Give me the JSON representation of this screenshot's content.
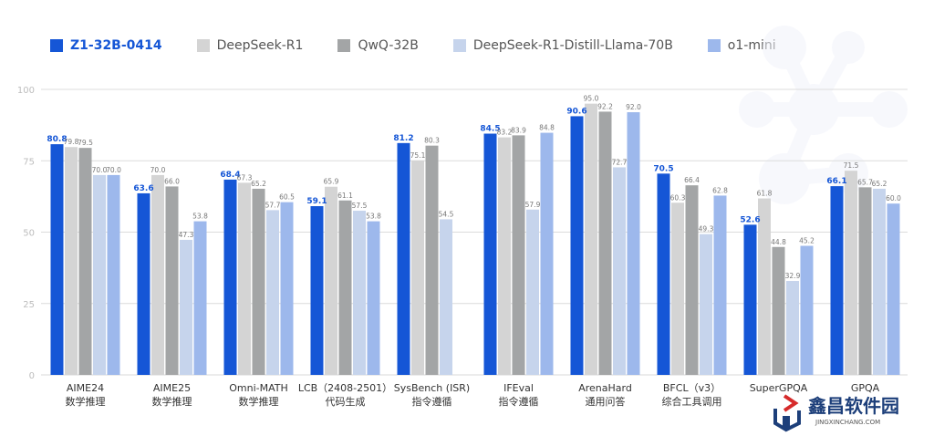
{
  "chart_data": {
    "type": "bar",
    "title": "",
    "xlabel": "",
    "ylabel": "",
    "ylim": [
      0,
      100
    ],
    "yticks": [
      "0",
      "25",
      "50",
      "75",
      "100"
    ],
    "grid": true,
    "legend_position": "top-left",
    "categories": [
      {
        "line1": "AIME24",
        "line2": "数学推理"
      },
      {
        "line1": "AIME25",
        "line2": "数学推理"
      },
      {
        "line1": "Omni-MATH",
        "line2": "数学推理"
      },
      {
        "line1": "LCB（2408-2501）",
        "line2": "代码生成"
      },
      {
        "line1": "SysBench (ISR)",
        "line2": "指令遵循"
      },
      {
        "line1": "IFEval",
        "line2": "指令遵循"
      },
      {
        "line1": "ArenaHard",
        "line2": "通用问答"
      },
      {
        "line1": "BFCL（v3）",
        "line2": "综合工具调用"
      },
      {
        "line1": "SuperGPQA",
        "line2": ""
      },
      {
        "line1": "GPQA",
        "line2": ""
      }
    ],
    "series": [
      {
        "name": "Z1-32B-0414",
        "color": "#1556d6",
        "label_color": "#1556d6",
        "values": [
          80.8,
          63.6,
          68.4,
          59.1,
          81.2,
          84.5,
          90.6,
          70.5,
          52.6,
          66.1
        ],
        "labels": [
          "80.8",
          "63.6",
          "68.4",
          "59.1",
          "81.2",
          "84.5",
          "90.6",
          "70.5",
          "52.6",
          "66.1"
        ]
      },
      {
        "name": "DeepSeek-R1",
        "color": "#d4d4d4",
        "label_color": "#777777",
        "values": [
          79.8,
          70.0,
          67.3,
          65.9,
          75.1,
          83.2,
          95.0,
          60.3,
          61.8,
          71.5
        ],
        "labels": [
          "79.8",
          "70.0",
          "67.3",
          "65.9",
          "75.1",
          "83.2",
          "95.0",
          "60.3",
          "61.8",
          "71.5"
        ]
      },
      {
        "name": "QwQ-32B",
        "color": "#a3a5a6",
        "label_color": "#777777",
        "values": [
          79.5,
          66.0,
          65.2,
          61.1,
          80.3,
          83.9,
          92.2,
          66.4,
          44.8,
          65.7
        ],
        "labels": [
          "79.5",
          "66.0",
          "65.2",
          "61.1",
          "80.3",
          "83.9",
          "92.2",
          "66.4",
          "44.8",
          "65.7"
        ]
      },
      {
        "name": "DeepSeek-R1-Distill-Llama-70B",
        "color": "#c6d4ec",
        "label_color": "#777777",
        "values": [
          70.0,
          47.3,
          57.7,
          57.5,
          54.5,
          57.9,
          72.7,
          49.3,
          32.9,
          65.2
        ],
        "labels": [
          "70.0",
          "47.3",
          "57.7",
          "57.5",
          "54.5",
          "57.9",
          "72.7",
          "49.3",
          "32.9",
          "65.2"
        ]
      },
      {
        "name": "o1-mini",
        "color": "#9db8ec",
        "label_color": "#777777",
        "values": [
          70.0,
          53.8,
          60.5,
          53.8,
          null,
          84.8,
          92.0,
          62.8,
          45.2,
          60.0
        ],
        "labels": [
          "70.0",
          "53.8",
          "60.5",
          "53.8",
          "",
          "84.8",
          "92.0",
          "62.8",
          "45.2",
          "60.0"
        ]
      }
    ]
  },
  "watermark": {
    "name": "鑫昌软件园",
    "url": "JINGXINCHANG.COM"
  }
}
